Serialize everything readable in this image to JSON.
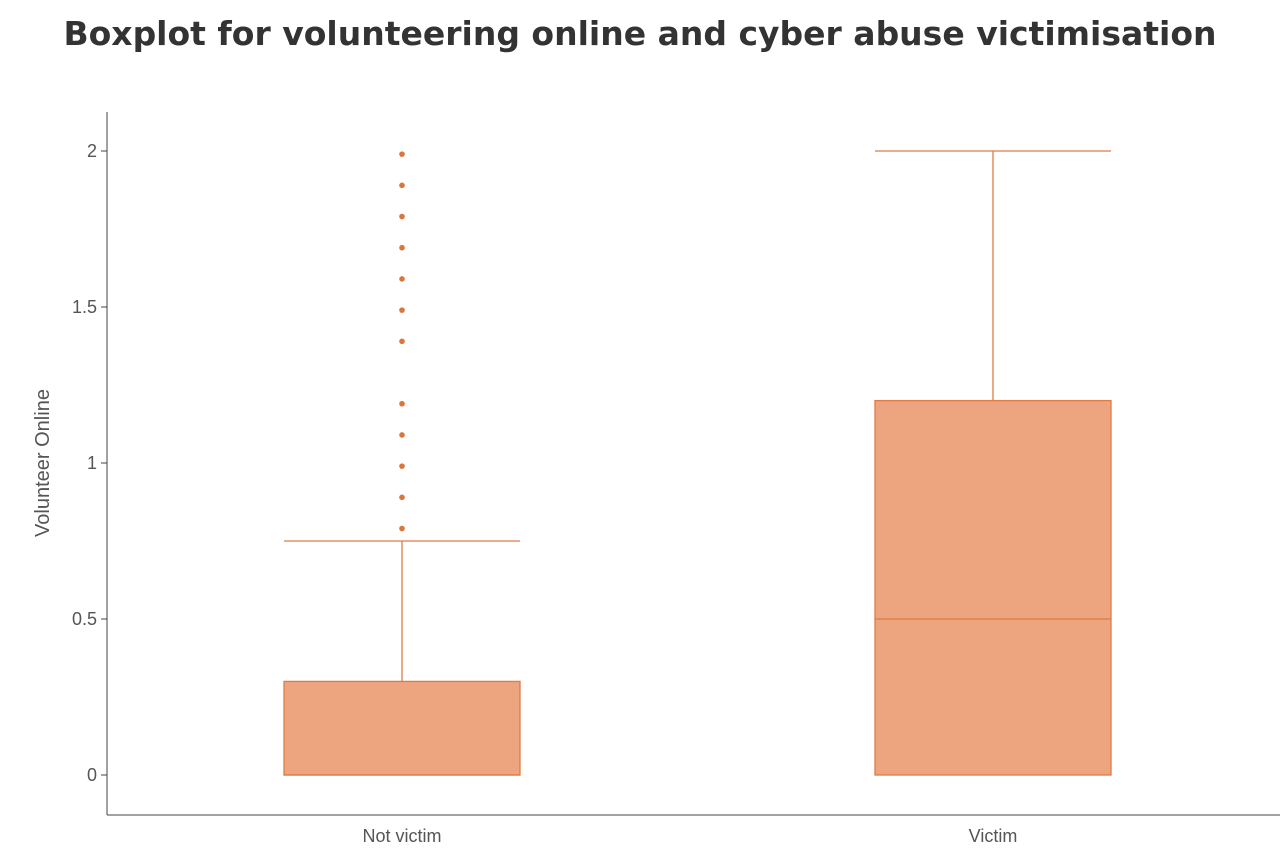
{
  "chart_data": {
    "type": "boxplot",
    "title": "Boxplot for volunteering online and cyber abuse victimisation",
    "xlabel": "",
    "ylabel": "Volunteer Online",
    "categories": [
      "Not victim",
      "Victim"
    ],
    "boxes": [
      {
        "category": "Not victim",
        "min": 0,
        "q1": 0,
        "median": 0,
        "q3": 0.3,
        "max": 0.75,
        "outliers": [
          0.79,
          0.89,
          0.99,
          1.09,
          1.19,
          1.39,
          1.49,
          1.59,
          1.69,
          1.79,
          1.89,
          1.99
        ]
      },
      {
        "category": "Victim",
        "min": 0,
        "q1": 0,
        "median": 0.5,
        "q3": 1.2,
        "max": 2.0,
        "outliers": []
      }
    ],
    "ylim": [
      -0.13,
      2.12
    ],
    "yticks": [
      0,
      0.5,
      1,
      1.5,
      2
    ],
    "ytick_labels": [
      "0",
      "0.5",
      "1",
      "1.5",
      "2"
    ],
    "grid": false,
    "colors": {
      "box_fill": "#eca57e",
      "box_stroke": "#e07b46",
      "outlier": "#d9763e",
      "axis": "#444444"
    }
  }
}
